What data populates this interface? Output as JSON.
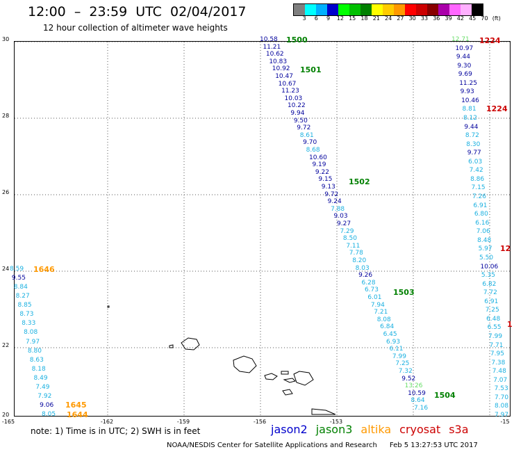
{
  "header": {
    "title": "12:00  –  23:59  UTC  02/04/2017",
    "subtitle": "12 hour collection of altimeter wave heights"
  },
  "legend": {
    "colors": [
      "#7f7f7f",
      "#00ffff",
      "#00b0ff",
      "#0000cc",
      "#00ff00",
      "#00c000",
      "#008000",
      "#ffff00",
      "#ffcc00",
      "#ff9900",
      "#ff0000",
      "#cc0000",
      "#880000",
      "#aa00aa",
      "#ff66ff",
      "#ffb0ff",
      "#000000"
    ],
    "labels": [
      "3",
      "6",
      "9",
      "12",
      "15",
      "18",
      "21",
      "24",
      "27",
      "30",
      "33",
      "36",
      "39",
      "42",
      "45",
      "70",
      "(ft)"
    ]
  },
  "axes": {
    "lat_labels": [
      "30",
      "28",
      "26",
      "24",
      "22",
      "20"
    ],
    "lon_labels": [
      "-165",
      "-162",
      "-159",
      "-156",
      "-153",
      "-15"
    ]
  },
  "tracks": {
    "colors": {
      "dark": "#00009c",
      "light": "#1ab0e0",
      "jason3": "#008000",
      "altika": "#ff9900",
      "cryosat": "#cc0000",
      "pale": "#66dd66"
    },
    "times": [
      {
        "text": "1500",
        "color": "jason3"
      },
      {
        "text": "1501",
        "color": "jason3"
      },
      {
        "text": "1502",
        "color": "jason3"
      },
      {
        "text": "1503",
        "color": "jason3"
      },
      {
        "text": "1504",
        "color": "jason3"
      },
      {
        "text": "1224",
        "color": "cryosat"
      },
      {
        "text": "1224",
        "color": "cryosat"
      },
      {
        "text": "12",
        "color": "cryosat"
      },
      {
        "text": "1",
        "color": "cryosat"
      },
      {
        "text": "1646",
        "color": "altika"
      },
      {
        "text": "1645",
        "color": "altika"
      },
      {
        "text": "1644",
        "color": "altika"
      }
    ],
    "middle": [
      {
        "v": "10.58",
        "c": "dark"
      },
      {
        "v": "11.21",
        "c": "dark"
      },
      {
        "v": "10.62",
        "c": "dark"
      },
      {
        "v": "10.83",
        "c": "dark"
      },
      {
        "v": "10.92",
        "c": "dark"
      },
      {
        "v": "10.47",
        "c": "dark"
      },
      {
        "v": "10.67",
        "c": "dark"
      },
      {
        "v": "11.23",
        "c": "dark"
      },
      {
        "v": "10.03",
        "c": "dark"
      },
      {
        "v": "10.22",
        "c": "dark"
      },
      {
        "v": "9.94",
        "c": "dark"
      },
      {
        "v": "9.50",
        "c": "dark"
      },
      {
        "v": "9.72",
        "c": "dark"
      },
      {
        "v": "8.61",
        "c": "light"
      },
      {
        "v": "9.70",
        "c": "dark"
      },
      {
        "v": "8.68",
        "c": "light"
      },
      {
        "v": "10.60",
        "c": "dark"
      },
      {
        "v": "9.19",
        "c": "dark"
      },
      {
        "v": "9.22",
        "c": "dark"
      },
      {
        "v": "9.15",
        "c": "dark"
      },
      {
        "v": "9.13",
        "c": "dark"
      },
      {
        "v": "9.72",
        "c": "dark"
      },
      {
        "v": "9.24",
        "c": "dark"
      },
      {
        "v": "7.88",
        "c": "light"
      },
      {
        "v": "9.03",
        "c": "dark"
      },
      {
        "v": "9.27",
        "c": "dark"
      },
      {
        "v": "7.29",
        "c": "light"
      },
      {
        "v": "8.50",
        "c": "light"
      },
      {
        "v": "7.11",
        "c": "light"
      },
      {
        "v": "7.78",
        "c": "light"
      },
      {
        "v": "8.20",
        "c": "light"
      },
      {
        "v": "8.03",
        "c": "light"
      },
      {
        "v": "9.26",
        "c": "dark"
      },
      {
        "v": "6.28",
        "c": "light"
      },
      {
        "v": "6.73",
        "c": "light"
      },
      {
        "v": "6.01",
        "c": "light"
      },
      {
        "v": "7.94",
        "c": "light"
      },
      {
        "v": "7.21",
        "c": "light"
      },
      {
        "v": "8.08",
        "c": "light"
      },
      {
        "v": "6.84",
        "c": "light"
      },
      {
        "v": "6.45",
        "c": "light"
      },
      {
        "v": "6.93",
        "c": "light"
      },
      {
        "v": "6.11",
        "c": "light"
      },
      {
        "v": "7.99",
        "c": "light"
      },
      {
        "v": "7.25",
        "c": "light"
      },
      {
        "v": "7.32",
        "c": "light"
      },
      {
        "v": "9.52",
        "c": "dark"
      },
      {
        "v": "13.26",
        "c": "pale"
      },
      {
        "v": "10.59",
        "c": "dark"
      },
      {
        "v": "8.64",
        "c": "light"
      },
      {
        "v": "7.16",
        "c": "light"
      }
    ],
    "right": [
      {
        "v": "12.71",
        "c": "pale"
      },
      {
        "v": "10.97",
        "c": "dark"
      },
      {
        "v": "9.44",
        "c": "dark"
      },
      {
        "v": "9.30",
        "c": "dark"
      },
      {
        "v": "9.69",
        "c": "dark"
      },
      {
        "v": "11.25",
        "c": "dark"
      },
      {
        "v": "9.93",
        "c": "dark"
      },
      {
        "v": "10.46",
        "c": "dark"
      },
      {
        "v": "8.81",
        "c": "light"
      },
      {
        "v": "8.12",
        "c": "light"
      },
      {
        "v": "9.44",
        "c": "dark"
      },
      {
        "v": "8.72",
        "c": "light"
      },
      {
        "v": "8.30",
        "c": "light"
      },
      {
        "v": "9.77",
        "c": "dark"
      },
      {
        "v": "6.03",
        "c": "light"
      },
      {
        "v": "7.42",
        "c": "light"
      },
      {
        "v": "8.86",
        "c": "light"
      },
      {
        "v": "7.15",
        "c": "light"
      },
      {
        "v": "7.26",
        "c": "light"
      },
      {
        "v": "6.91",
        "c": "light"
      },
      {
        "v": "6.80",
        "c": "light"
      },
      {
        "v": "6.16",
        "c": "light"
      },
      {
        "v": "7.06",
        "c": "light"
      },
      {
        "v": "8.48",
        "c": "light"
      },
      {
        "v": "5.97",
        "c": "light"
      },
      {
        "v": "5.50",
        "c": "light"
      },
      {
        "v": "10.06",
        "c": "dark"
      },
      {
        "v": "5.35",
        "c": "light"
      },
      {
        "v": "6.82",
        "c": "light"
      },
      {
        "v": "7.72",
        "c": "light"
      },
      {
        "v": "6.91",
        "c": "light"
      },
      {
        "v": "7.25",
        "c": "light"
      },
      {
        "v": "6.48",
        "c": "light"
      },
      {
        "v": "6.55",
        "c": "light"
      },
      {
        "v": "7.99",
        "c": "light"
      },
      {
        "v": "7.71",
        "c": "light"
      },
      {
        "v": "7.95",
        "c": "light"
      },
      {
        "v": "7.38",
        "c": "light"
      },
      {
        "v": "7.48",
        "c": "light"
      },
      {
        "v": "7.07",
        "c": "light"
      },
      {
        "v": "7.53",
        "c": "light"
      },
      {
        "v": "7.70",
        "c": "light"
      },
      {
        "v": "8.08",
        "c": "light"
      },
      {
        "v": "7.97",
        "c": "light"
      }
    ],
    "left": [
      {
        "v": "8.59",
        "c": "light"
      },
      {
        "v": "9.55",
        "c": "dark"
      },
      {
        "v": "8.84",
        "c": "light"
      },
      {
        "v": "8.27",
        "c": "light"
      },
      {
        "v": "8.85",
        "c": "light"
      },
      {
        "v": "8.73",
        "c": "light"
      },
      {
        "v": "8.33",
        "c": "light"
      },
      {
        "v": "8.08",
        "c": "light"
      },
      {
        "v": "7.97",
        "c": "light"
      },
      {
        "v": "8.80",
        "c": "light"
      },
      {
        "v": "8.63",
        "c": "light"
      },
      {
        "v": "8.18",
        "c": "light"
      },
      {
        "v": "8.49",
        "c": "light"
      },
      {
        "v": "7.49",
        "c": "light"
      },
      {
        "v": "7.92",
        "c": "light"
      },
      {
        "v": "9.06",
        "c": "dark"
      },
      {
        "v": "8.05",
        "c": "light"
      }
    ]
  },
  "footer": {
    "note": "note:  1) Time is in UTC;  2) SWH is in feet",
    "satellites": [
      {
        "name": "jason2",
        "color": "#0000cc"
      },
      {
        "name": "jason3",
        "color": "#008000"
      },
      {
        "name": "altika",
        "color": "#ff9900"
      },
      {
        "name": "cryosat",
        "color": "#cc0000"
      },
      {
        "name": "s3a",
        "color": "#cc0000"
      }
    ],
    "credit": "NOAA/NESDIS Center for Satellite Applications and Research",
    "timestamp": "Feb  5 13:27:53 UTC 2017"
  }
}
